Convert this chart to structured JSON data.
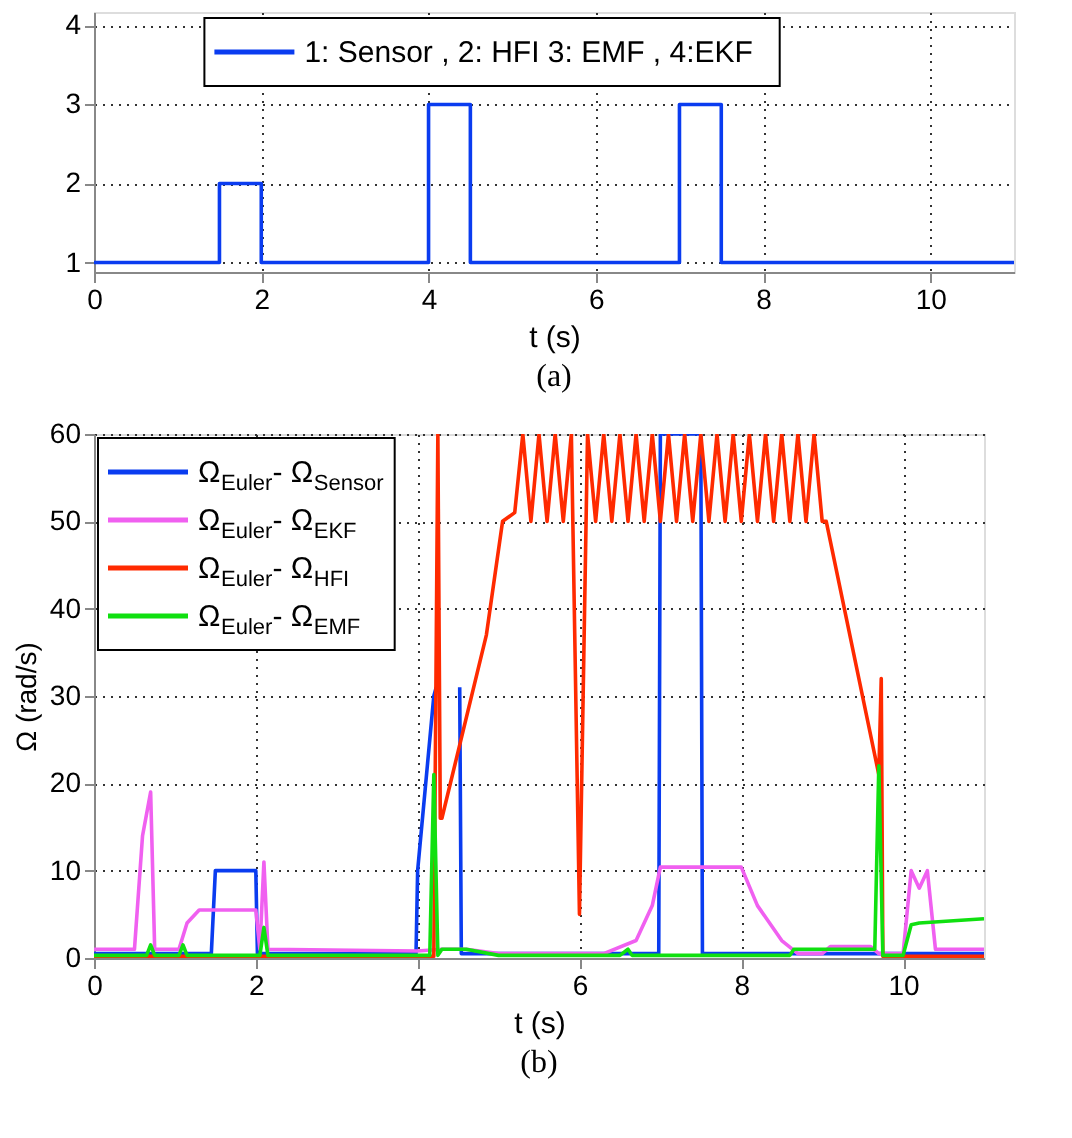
{
  "chart_data": [
    {
      "type": "line",
      "xlabel": "t (s)",
      "annotations": [
        "(a)"
      ],
      "xlim": [
        0,
        11
      ],
      "ylim": [
        0.88,
        4.17
      ],
      "xticks": [
        0,
        2,
        4,
        6,
        8,
        10
      ],
      "yticks": [
        1,
        2,
        3,
        4
      ],
      "grid": true,
      "legend": "top",
      "series": [
        {
          "name": "1: Sensor , 2: HFI  3: EMF  , 4:EKF",
          "color": "#0a3cf0",
          "x": [
            0,
            1.5,
            1.5,
            2,
            2,
            4,
            4,
            4.5,
            4.5,
            7,
            7,
            7.5,
            7.5,
            11
          ],
          "values": [
            1,
            1,
            2,
            2,
            1,
            1,
            3,
            3,
            1,
            1,
            3,
            3,
            1,
            1
          ]
        }
      ]
    },
    {
      "type": "line",
      "xlabel": "t (s)",
      "ylabel": "Ω (rad/s)",
      "annotations": [
        "(b)"
      ],
      "xlim": [
        0,
        11
      ],
      "ylim": [
        0,
        60
      ],
      "xticks": [
        0,
        2,
        4,
        6,
        8,
        10
      ],
      "yticks": [
        0,
        10,
        20,
        30,
        40,
        50,
        60
      ],
      "grid": true,
      "legend": "top left",
      "series": [
        {
          "name": "Ω$_{Euler}$- Ω$_{Sensor}$",
          "color": "#0a3cf0",
          "x": [
            0,
            1.45,
            1.5,
            2.0,
            2.02,
            3.98,
            4.0,
            4.2,
            4.23,
            4.35,
            4.52,
            4.54,
            6.98,
            7.0,
            7.5,
            7.52,
            11
          ],
          "values": [
            0.5,
            0.5,
            10,
            10,
            0.5,
            0.5,
            10,
            30,
            31,
            null,
            31,
            0.5,
            0.5,
            60,
            60,
            0.5,
            0.5
          ]
        },
        {
          "name": "Ω$_{Euler}$- Ω$_{EKF}$",
          "color": "#f060f0",
          "x": [
            0,
            0.5,
            0.6,
            0.7,
            0.75,
            1.05,
            1.15,
            1.3,
            2.0,
            2.05,
            2.1,
            2.15,
            4.0,
            4.3,
            4.6,
            5.0,
            6.3,
            6.7,
            6.9,
            7.0,
            8.0,
            8.2,
            8.5,
            8.7,
            9.0,
            9.1,
            9.6,
            9.7,
            10.0,
            10.1,
            10.2,
            10.3,
            10.4,
            11
          ],
          "values": [
            1,
            1,
            14,
            19,
            1,
            1,
            4,
            5.5,
            5.5,
            1,
            11,
            1,
            0.8,
            1,
            1,
            0.5,
            0.5,
            2,
            6,
            10.4,
            10.4,
            6,
            2,
            0.5,
            0.5,
            1.3,
            1.3,
            0.5,
            0.5,
            10,
            8,
            10,
            1,
            1
          ]
        },
        {
          "name": "Ω$_{Euler}$- Ω$_{HFI}$",
          "color": "#ff2a00",
          "x": [
            0,
            4.2,
            4.25,
            4.28,
            4.3,
            4.85,
            5.05,
            5.2,
            5.3,
            5.4,
            5.5,
            5.6,
            5.7,
            5.8,
            5.9,
            6.0,
            6.1,
            6.2,
            6.3,
            6.4,
            6.5,
            6.6,
            6.7,
            6.8,
            6.9,
            7.0,
            7.1,
            7.2,
            7.3,
            7.4,
            7.5,
            7.6,
            7.7,
            7.8,
            7.9,
            8.0,
            8.1,
            8.2,
            8.3,
            8.4,
            8.5,
            8.6,
            8.7,
            8.8,
            8.9,
            9.0,
            9.05,
            9.7,
            9.73,
            9.75,
            11
          ],
          "values": [
            0.2,
            0.2,
            60,
            16,
            16,
            37,
            50,
            51,
            60,
            50,
            60,
            50,
            60,
            50,
            60,
            5,
            60,
            50,
            60,
            50,
            60,
            50,
            60,
            50,
            60,
            50,
            60,
            50,
            60,
            50,
            60,
            50,
            60,
            50,
            60,
            50,
            60,
            50,
            60,
            50,
            60,
            50,
            60,
            50,
            60,
            50,
            50,
            21,
            32,
            0.2,
            0.2
          ]
        },
        {
          "name": "Ω$_{Euler}$- Ω$_{EMF}$",
          "color": "#10e010",
          "x": [
            0,
            0.65,
            0.7,
            0.75,
            1.05,
            1.1,
            1.15,
            2.05,
            2.1,
            2.15,
            4.15,
            4.2,
            4.25,
            4.3,
            4.6,
            5.0,
            6.5,
            6.6,
            6.65,
            8.6,
            8.65,
            9.0,
            9.65,
            9.7,
            9.75,
            10.0,
            10.1,
            10.2,
            11
          ],
          "values": [
            0.3,
            0.3,
            1.5,
            0.3,
            0.3,
            1.5,
            0.3,
            0.3,
            3.5,
            0.3,
            0.3,
            21,
            0.3,
            1,
            1,
            0.3,
            0.3,
            1,
            0.3,
            0.3,
            1,
            1,
            1,
            22,
            0.3,
            0.3,
            3.8,
            4,
            4.5
          ]
        }
      ]
    }
  ]
}
